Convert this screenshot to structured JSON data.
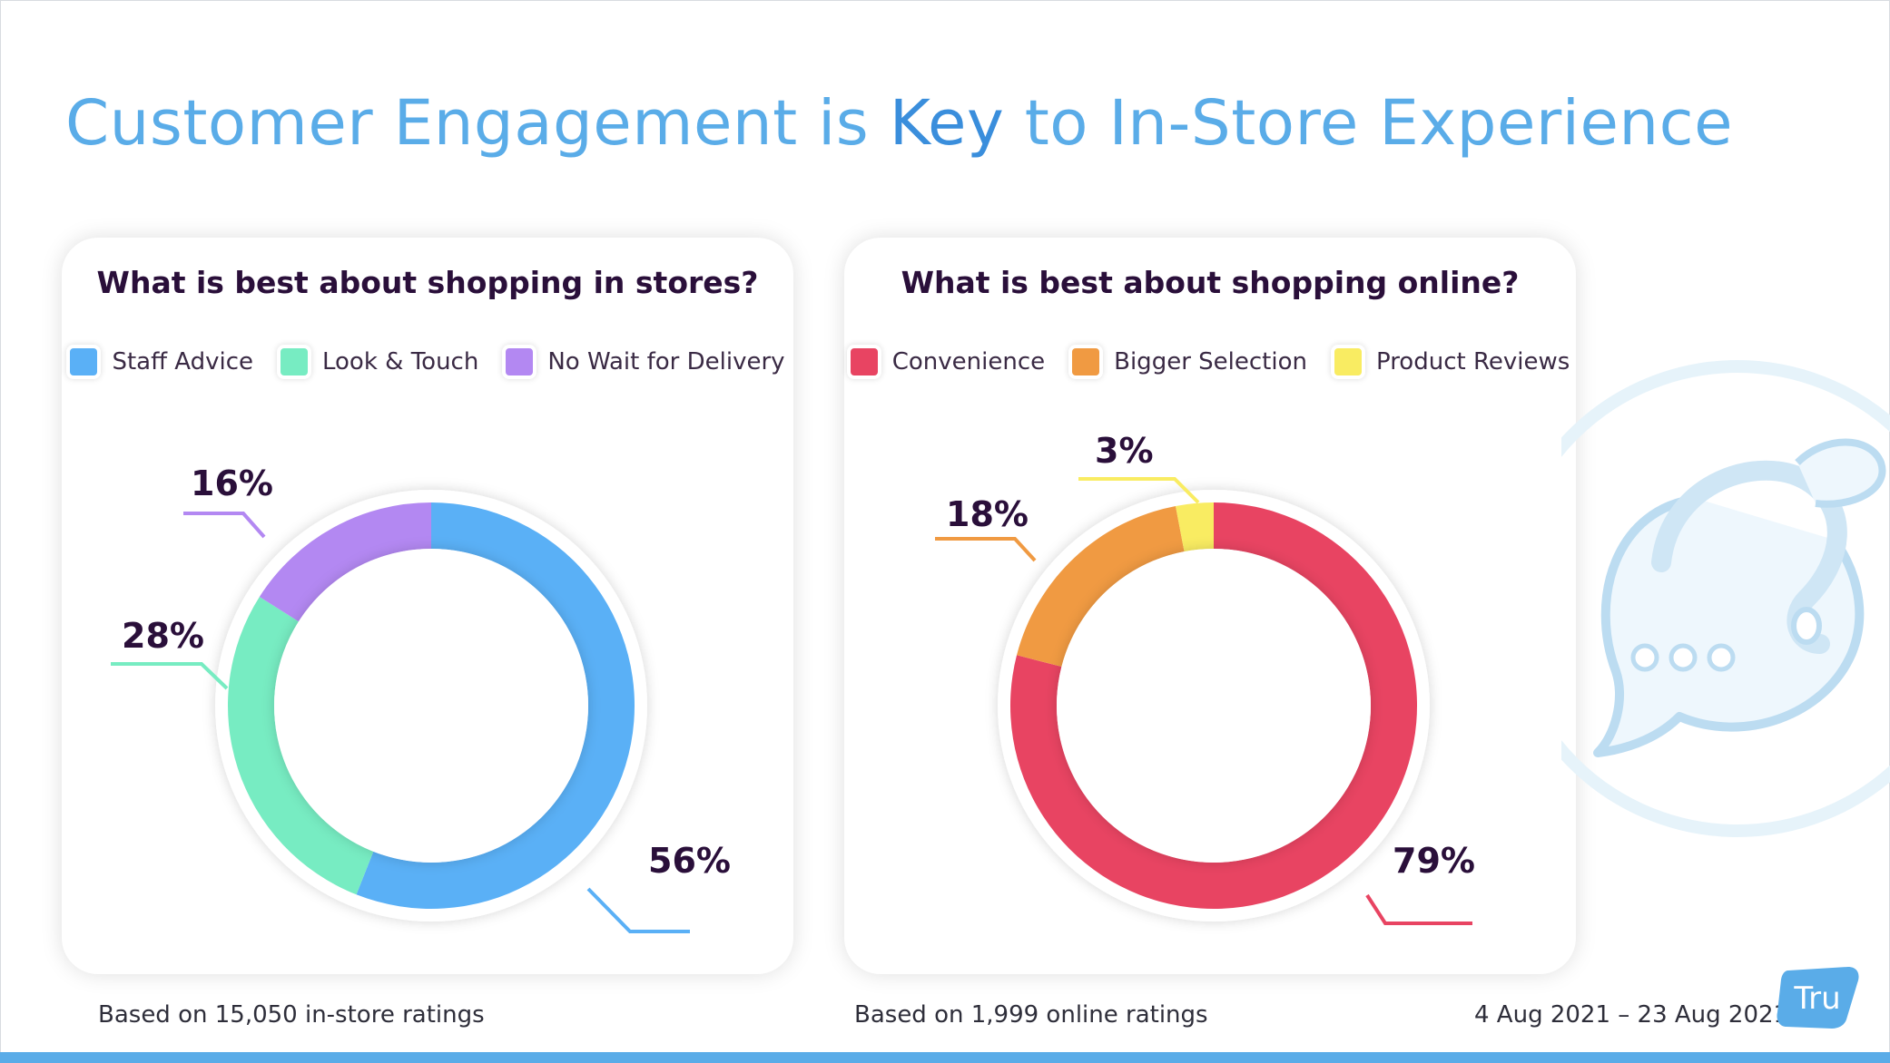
{
  "page": {
    "title_before": "Customer Engagement is ",
    "title_key": "Key",
    "title_after": " to In-Store Experience",
    "accent": "#5aace8"
  },
  "chart_data": [
    {
      "type": "pie",
      "variant": "donut",
      "title": "What is best about shopping in stores?",
      "categories": [
        "Staff Advice",
        "Look & Touch",
        "No Wait for Delivery"
      ],
      "values": [
        56,
        28,
        16
      ],
      "labels": [
        "56%",
        "28%",
        "16%"
      ],
      "colors": [
        "#5ab0f6",
        "#77ecc2",
        "#b388f2"
      ],
      "legend": "top",
      "note": "Based on 15,050 in-store ratings"
    },
    {
      "type": "pie",
      "variant": "donut",
      "title": "What is best about shopping online?",
      "categories": [
        "Convenience",
        "Bigger Selection",
        "Product Reviews"
      ],
      "values": [
        79,
        18,
        3
      ],
      "labels": [
        "79%",
        "18%",
        "3%"
      ],
      "colors": [
        "#e84462",
        "#f09a42",
        "#f9ec62"
      ],
      "legend": "top",
      "note": "Based on 1,999 online ratings"
    }
  ],
  "footer": {
    "date_range": "4 Aug 2021 – 23 Aug 2021",
    "logo_text": "Tru",
    "logo_color": "#5aace8"
  },
  "icons": {
    "decoration": "speech-bubble-question-icon",
    "logo": "tru-logo-icon"
  }
}
